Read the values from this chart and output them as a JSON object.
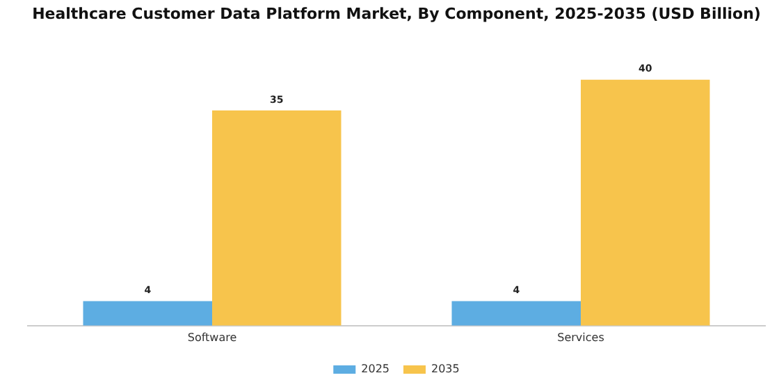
{
  "chart_data": {
    "type": "bar",
    "title": "Healthcare Customer Data Platform Market, By Component, 2025-2035 (USD Billion)",
    "categories": [
      "Software",
      "Services"
    ],
    "series": [
      {
        "name": "2025",
        "color": "#5dade2",
        "values": [
          4,
          4
        ]
      },
      {
        "name": "2035",
        "color": "#f7c44c",
        "values": [
          35,
          40
        ]
      }
    ],
    "data_labels": true,
    "legend": "bottom",
    "grid": false
  }
}
